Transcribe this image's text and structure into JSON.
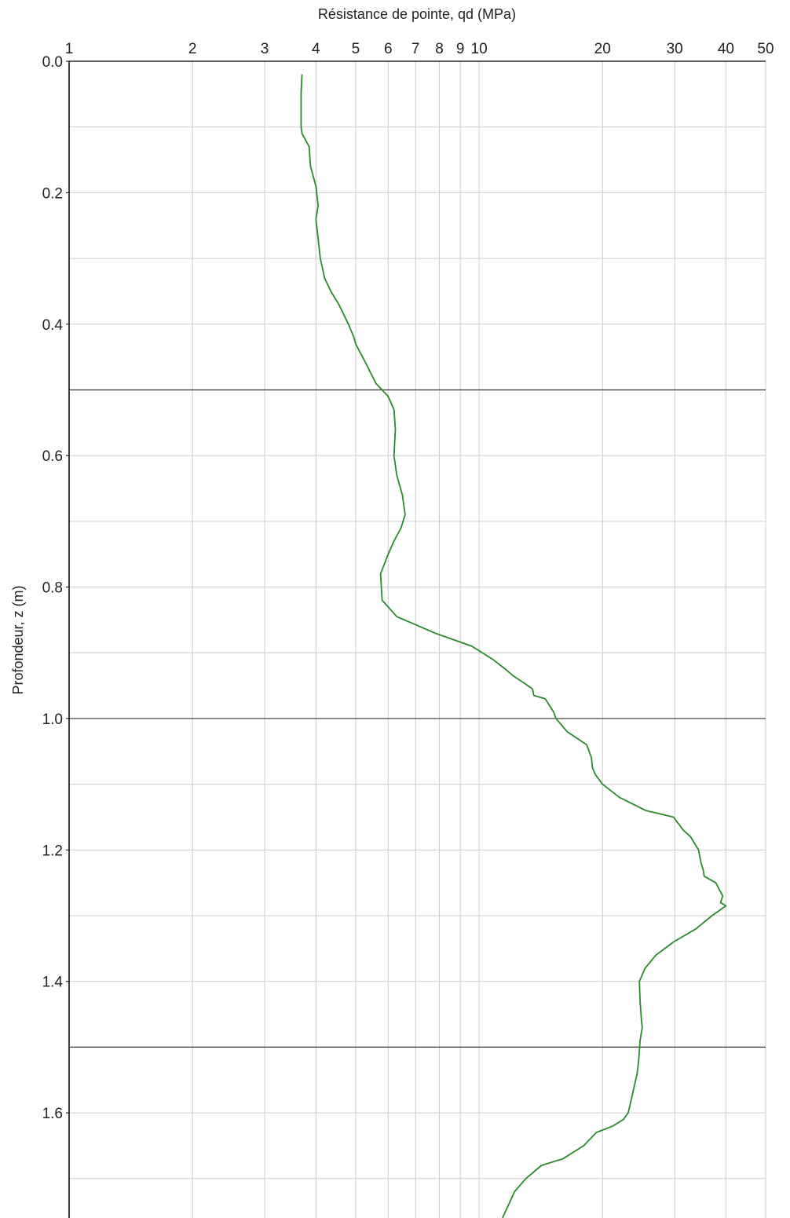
{
  "chart_data": {
    "type": "line",
    "title": "",
    "xlabel": "Résistance de pointe, qd (MPa)",
    "ylabel": "Profondeur, z (m)",
    "x_scale": "log",
    "x_axis_position": "top",
    "y_inverted": true,
    "xlim": [
      1,
      50
    ],
    "ylim": [
      0.0,
      1.76
    ],
    "x_ticks": [
      1,
      2,
      3,
      4,
      5,
      6,
      7,
      8,
      9,
      10,
      20,
      30,
      40,
      50
    ],
    "x_tick_labels": [
      "1",
      "2",
      "3",
      "4",
      "5",
      "6",
      "7",
      "8",
      "9",
      "10",
      "20",
      "30",
      "40",
      "50"
    ],
    "y_ticks": [
      0.0,
      0.2,
      0.4,
      0.6,
      0.8,
      1.0,
      1.2,
      1.4,
      1.6
    ],
    "y_tick_labels": [
      "0.0",
      "0.2",
      "0.4",
      "0.6",
      "0.8",
      "1.0",
      "1.2",
      "1.4",
      "1.6"
    ],
    "y_minor_grid": [
      0.1,
      0.3,
      0.5,
      0.7,
      0.9,
      1.1,
      1.3,
      1.5,
      1.7
    ],
    "layer_boundaries": [
      0.5,
      1.0,
      1.5
    ],
    "grid": true,
    "colors": {
      "series": "#2a8a2a",
      "grid": "#cccccc",
      "boundary": "#333333",
      "axis": "#000000"
    },
    "series": [
      {
        "name": "",
        "x": [
          3.7,
          3.68,
          3.68,
          3.7,
          3.85,
          3.88,
          4.0,
          4.05,
          4.0,
          4.05,
          4.1,
          4.2,
          4.35,
          4.55,
          4.8,
          4.95,
          5.0,
          5.3,
          5.6,
          6.0,
          6.2,
          6.25,
          6.2,
          6.3,
          6.5,
          6.6,
          6.45,
          6.2,
          6.0,
          5.75,
          5.8,
          6.3,
          7.8,
          9.6,
          10.8,
          11.6,
          12.1,
          12.8,
          13.5,
          13.6,
          14.5,
          15.2,
          15.4,
          16.4,
          18.3,
          18.8,
          18.9,
          19.2,
          20.0,
          22.0,
          25.5,
          29.8,
          31.5,
          32.8,
          34.3,
          34.8,
          35.2,
          35.4,
          37.8,
          38.5,
          39.3,
          38.8,
          40.0,
          37.0,
          33.8,
          29.8,
          27.0,
          25.4,
          24.6,
          24.7,
          24.9,
          25.0,
          24.7,
          24.5,
          24.3,
          23.9,
          23.5,
          23.1,
          22.5,
          21.2,
          19.3,
          18.0,
          16.0,
          14.2,
          13.0,
          12.2,
          11.8,
          11.4
        ]
      }
    ],
    "series_y": [
      0.02,
      0.05,
      0.1,
      0.11,
      0.13,
      0.16,
      0.19,
      0.22,
      0.24,
      0.27,
      0.3,
      0.33,
      0.35,
      0.37,
      0.4,
      0.42,
      0.43,
      0.46,
      0.49,
      0.51,
      0.53,
      0.56,
      0.6,
      0.63,
      0.66,
      0.69,
      0.71,
      0.73,
      0.75,
      0.78,
      0.82,
      0.845,
      0.87,
      0.89,
      0.91,
      0.925,
      0.935,
      0.945,
      0.955,
      0.965,
      0.97,
      0.99,
      1.0,
      1.02,
      1.04,
      1.06,
      1.075,
      1.085,
      1.1,
      1.12,
      1.14,
      1.15,
      1.17,
      1.18,
      1.2,
      1.22,
      1.23,
      1.24,
      1.25,
      1.26,
      1.27,
      1.28,
      1.285,
      1.3,
      1.32,
      1.34,
      1.36,
      1.38,
      1.4,
      1.43,
      1.46,
      1.47,
      1.49,
      1.52,
      1.54,
      1.56,
      1.58,
      1.6,
      1.61,
      1.62,
      1.63,
      1.65,
      1.67,
      1.68,
      1.7,
      1.72,
      1.74,
      1.76
    ]
  }
}
